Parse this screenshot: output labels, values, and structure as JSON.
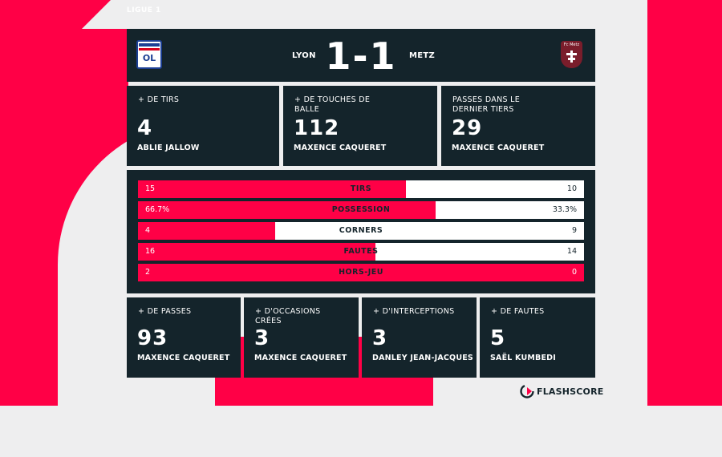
{
  "league": "LIGUE 1",
  "match": {
    "home_team": "LYON",
    "away_team": "METZ",
    "score": "1-1",
    "home_logo_text": "OL",
    "home_logo_top": "OLYMPIQUE LYONNAIS",
    "away_logo_text": "Fc Metz"
  },
  "top_cards": [
    {
      "label": "+ DE TIRS",
      "value": "4",
      "player": "ABLIE JALLOW"
    },
    {
      "label": "+ DE TOUCHES DE BALLE",
      "value": "112",
      "player": "MAXENCE CAQUERET"
    },
    {
      "label": "PASSES DANS LE DERNIER TIERS",
      "value": "29",
      "player": "MAXENCE CAQUERET"
    }
  ],
  "stats": [
    {
      "label": "TIRS",
      "home": "15",
      "away": "10",
      "home_share": 0.6
    },
    {
      "label": "POSSESSION",
      "home": "66.7%",
      "away": "33.3%",
      "home_share": 0.667
    },
    {
      "label": "CORNERS",
      "home": "4",
      "away": "9",
      "home_share": 0.308
    },
    {
      "label": "FAUTES",
      "home": "16",
      "away": "14",
      "home_share": 0.533
    },
    {
      "label": "HORS-JEU",
      "home": "2",
      "away": "0",
      "home_share": 1.0
    }
  ],
  "bottom_cards": [
    {
      "label": "+ DE PASSES",
      "value": "93",
      "player": "MAXENCE CAQUERET"
    },
    {
      "label": "+ D'OCCASIONS CRÉES",
      "value": "3",
      "player": "MAXENCE CAQUERET"
    },
    {
      "label": "+ D'INTERCEPTIONS",
      "value": "3",
      "player": "DANLEY JEAN-JACQUES"
    },
    {
      "label": "+ DE FAUTES",
      "value": "5",
      "player": "SAËL KUMBEDI"
    }
  ],
  "brand": "FLASHSCORE",
  "colors": {
    "accent": "#ff0046",
    "panel": "#14242b",
    "background": "#eeeeef"
  }
}
